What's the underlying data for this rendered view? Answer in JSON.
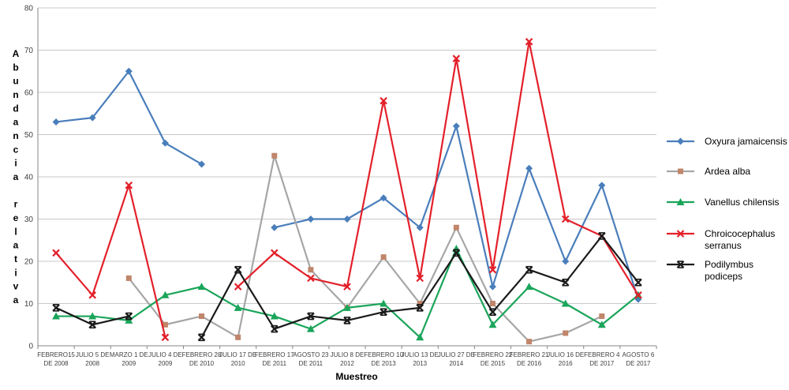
{
  "chart_data": {
    "type": "line",
    "title": "",
    "xlabel": "Muestreo",
    "ylabel": "Abundancia relativa",
    "ylim": [
      0,
      80
    ],
    "yticks": [
      0,
      10,
      20,
      30,
      40,
      50,
      60,
      70,
      80
    ],
    "grid": true,
    "legend": "right",
    "categories": [
      [
        "FEBRERO15",
        "DE 2008"
      ],
      [
        "JULIO 5 DE",
        "2008"
      ],
      [
        "MARZO 1 DE",
        "2009"
      ],
      [
        "JULIO 4 DE",
        "2009"
      ],
      [
        "FEBRERO 28",
        "DE 2010"
      ],
      [
        "JULIO 17 DE",
        "2010"
      ],
      [
        "FEBRERO 17",
        "DE 2011"
      ],
      [
        "AGOSTO 23",
        "DE 2011"
      ],
      [
        "JULIO 8 DE",
        "2012"
      ],
      [
        "FEBRERO 10",
        "DE 2013"
      ],
      [
        "JULIO 13 DE",
        "2013"
      ],
      [
        "JULIO 27 DE",
        "2014"
      ],
      [
        "FEBRERO 22",
        "DE 2015"
      ],
      [
        "FEBRERO 21",
        "DE 2016"
      ],
      [
        "JULIO 16 DE",
        "2016"
      ],
      [
        "FEBRERO 4",
        "DE 2017"
      ],
      [
        "AGOSTO 6",
        "DE 2017"
      ]
    ],
    "series": [
      {
        "name": "Oxyura jamaicensis",
        "legend_lines": [
          "Oxyura jamaicensis"
        ],
        "color": "#4a7ebb",
        "marker": "diamond",
        "values": [
          53,
          54,
          65,
          48,
          43,
          null,
          28,
          30,
          30,
          35,
          28,
          52,
          14,
          42,
          20,
          38,
          11
        ]
      },
      {
        "name": "Ardea alba",
        "legend_lines": [
          "Ardea alba"
        ],
        "color": "#a6a6a6",
        "marker_color": "#c0856a",
        "marker": "square",
        "values": [
          null,
          null,
          16,
          5,
          7,
          2,
          45,
          18,
          9,
          21,
          10,
          28,
          10,
          1,
          3,
          7,
          null
        ]
      },
      {
        "name": "Vanellus chilensis",
        "legend_lines": [
          "Vanellus chilensis"
        ],
        "color": "#1aa55a",
        "marker": "triangle",
        "values": [
          7,
          7,
          6,
          12,
          14,
          9,
          7,
          4,
          9,
          10,
          2,
          23,
          5,
          14,
          10,
          5,
          12
        ]
      },
      {
        "name": "Chroicocephalus serranus",
        "legend_lines": [
          "Chroicocephalus",
          "serranus"
        ],
        "color": "#e3202a",
        "marker": "x",
        "values": [
          22,
          12,
          38,
          2,
          null,
          14,
          22,
          16,
          14,
          58,
          16,
          68,
          18,
          72,
          30,
          26,
          12
        ]
      },
      {
        "name": "Podilymbus podiceps",
        "legend_lines": [
          "Podilymbus",
          "podiceps"
        ],
        "color": "#1a1a1a",
        "marker": "star",
        "values": [
          9,
          5,
          7,
          null,
          2,
          18,
          4,
          7,
          6,
          8,
          9,
          22,
          8,
          18,
          15,
          26,
          15
        ]
      }
    ]
  }
}
